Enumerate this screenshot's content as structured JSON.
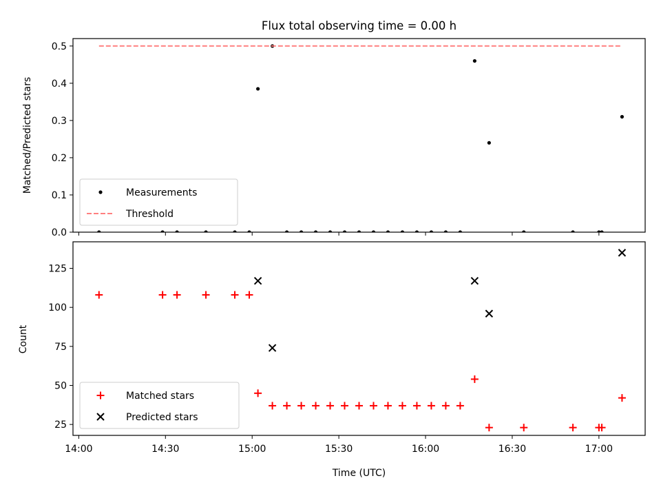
{
  "chart_data": [
    {
      "type": "scatter",
      "title": "Flux total observing time = 0.00 h",
      "xlabel": "",
      "ylabel": "Matched/Predicted stars",
      "xlim": [
        "13:58",
        "17:16"
      ],
      "ylim": [
        0,
        0.52
      ],
      "yticks": [
        0,
        0.1,
        0.2,
        0.3,
        0.4,
        0.5
      ],
      "ytick_labels": [
        "0.0",
        "0.1",
        "0.2",
        "0.3",
        "0.4",
        "0.5"
      ],
      "xticks": [
        "14:00",
        "14:30",
        "15:00",
        "15:30",
        "16:00",
        "16:30",
        "17:00"
      ],
      "legend": "lower-left",
      "series": [
        {
          "name": "Measurements",
          "marker": "dot",
          "color": "#000000",
          "x": [
            "14:07",
            "14:29",
            "14:34",
            "14:44",
            "14:54",
            "14:59",
            "15:02",
            "15:07",
            "15:12",
            "15:17",
            "15:22",
            "15:27",
            "15:32",
            "15:37",
            "15:42",
            "15:47",
            "15:52",
            "15:57",
            "16:02",
            "16:07",
            "16:12",
            "16:17",
            "16:22",
            "16:34",
            "16:51",
            "17:00",
            "17:01",
            "17:08"
          ],
          "y": [
            0,
            0,
            0,
            0,
            0,
            0,
            0.385,
            0.5,
            0,
            0,
            0,
            0,
            0,
            0,
            0,
            0,
            0,
            0,
            0,
            0,
            0,
            0.46,
            0.24,
            0,
            0,
            0,
            0,
            0.31
          ]
        },
        {
          "name": "Threshold",
          "style": "dashed-line",
          "color": "#ff7f7f",
          "x": [
            "14:07",
            "17:08"
          ],
          "y": [
            0.5,
            0.5
          ]
        }
      ]
    },
    {
      "type": "scatter",
      "title": "",
      "xlabel": "Time (UTC)",
      "ylabel": "Count",
      "xlim": [
        "13:58",
        "17:16"
      ],
      "ylim": [
        18,
        142
      ],
      "yticks": [
        25,
        50,
        75,
        100,
        125
      ],
      "ytick_labels": [
        "25",
        "50",
        "75",
        "100",
        "125"
      ],
      "xticks": [
        "14:00",
        "14:30",
        "15:00",
        "15:30",
        "16:00",
        "16:30",
        "17:00"
      ],
      "legend": "lower-left",
      "series": [
        {
          "name": "Matched stars",
          "marker": "plus",
          "color": "#ff0000",
          "x": [
            "14:07",
            "14:29",
            "14:34",
            "14:44",
            "14:54",
            "14:59",
            "15:02",
            "15:07",
            "15:12",
            "15:17",
            "15:22",
            "15:27",
            "15:32",
            "15:37",
            "15:42",
            "15:47",
            "15:52",
            "15:57",
            "16:02",
            "16:07",
            "16:12",
            "16:17",
            "16:22",
            "16:34",
            "16:51",
            "17:00",
            "17:01",
            "17:08"
          ],
          "y": [
            108,
            108,
            108,
            108,
            108,
            108,
            45,
            37,
            37,
            37,
            37,
            37,
            37,
            37,
            37,
            37,
            37,
            37,
            37,
            37,
            37,
            54,
            23,
            23,
            23,
            23,
            23,
            42
          ]
        },
        {
          "name": "Predicted stars",
          "marker": "x",
          "color": "#000000",
          "x": [
            "15:02",
            "15:07",
            "16:17",
            "16:22",
            "17:08"
          ],
          "y": [
            117,
            74,
            117,
            96,
            135
          ]
        }
      ]
    }
  ]
}
